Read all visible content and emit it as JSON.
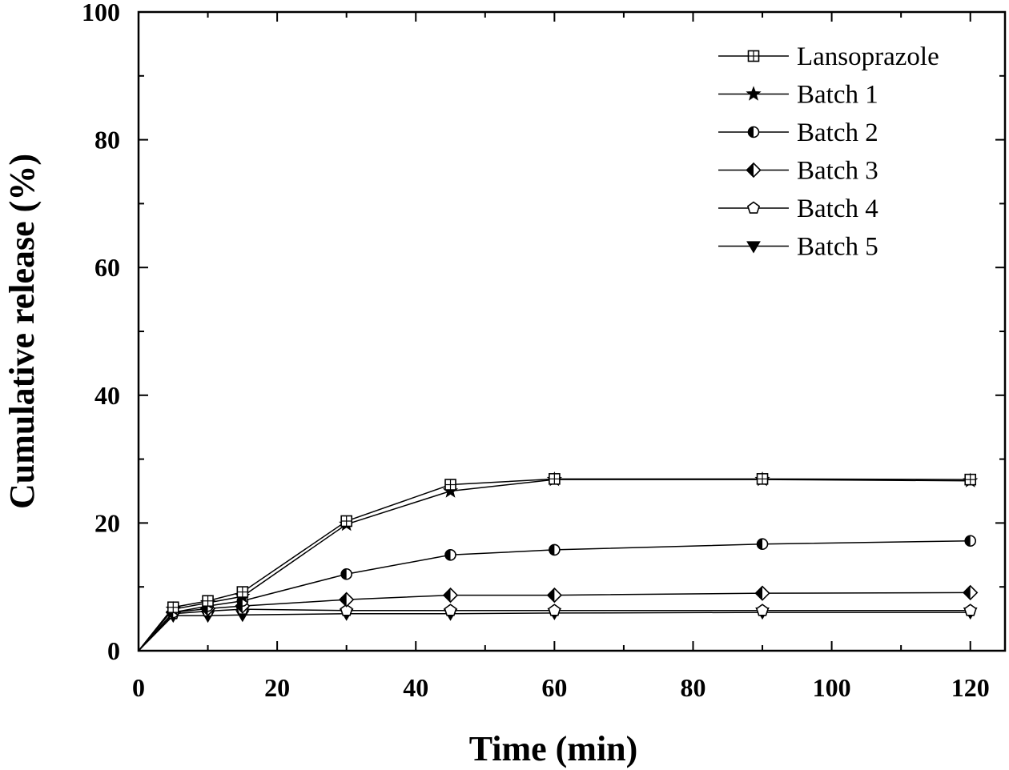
{
  "chart_data": {
    "type": "line",
    "xlabel": "Time (min)",
    "ylabel": "Cumulative release (%)",
    "xlim": [
      0,
      125
    ],
    "ylim": [
      0,
      100
    ],
    "x_ticks": [
      0,
      20,
      40,
      60,
      80,
      100,
      120
    ],
    "y_ticks": [
      0,
      20,
      40,
      60,
      80,
      100
    ],
    "grid": false,
    "legend_position": "top-right",
    "x": [
      0,
      5,
      10,
      15,
      30,
      45,
      60,
      90,
      120
    ],
    "series": [
      {
        "name": "Lansoprazole",
        "marker": "square-cross",
        "values": [
          0,
          6.8,
          7.8,
          9.2,
          20.3,
          26.0,
          26.9,
          26.9,
          26.8
        ]
      },
      {
        "name": "Batch 1",
        "marker": "star",
        "values": [
          0,
          6.5,
          7.5,
          8.5,
          19.8,
          25.0,
          26.8,
          26.8,
          26.6
        ]
      },
      {
        "name": "Batch 2",
        "marker": "circle-half-left",
        "values": [
          0,
          6.0,
          7.0,
          7.8,
          12.0,
          15.0,
          15.8,
          16.7,
          17.2
        ]
      },
      {
        "name": "Batch 3",
        "marker": "diamond-half-left",
        "values": [
          0,
          6.0,
          6.6,
          7.0,
          8.0,
          8.7,
          8.7,
          9.0,
          9.1
        ]
      },
      {
        "name": "Batch 4",
        "marker": "pentagon-open",
        "values": [
          0,
          5.8,
          6.2,
          6.5,
          6.3,
          6.3,
          6.3,
          6.3,
          6.3
        ]
      },
      {
        "name": "Batch 5",
        "marker": "triangle-down-filled",
        "values": [
          0,
          5.5,
          5.5,
          5.6,
          5.8,
          5.8,
          5.9,
          6.0,
          6.0
        ]
      }
    ]
  }
}
